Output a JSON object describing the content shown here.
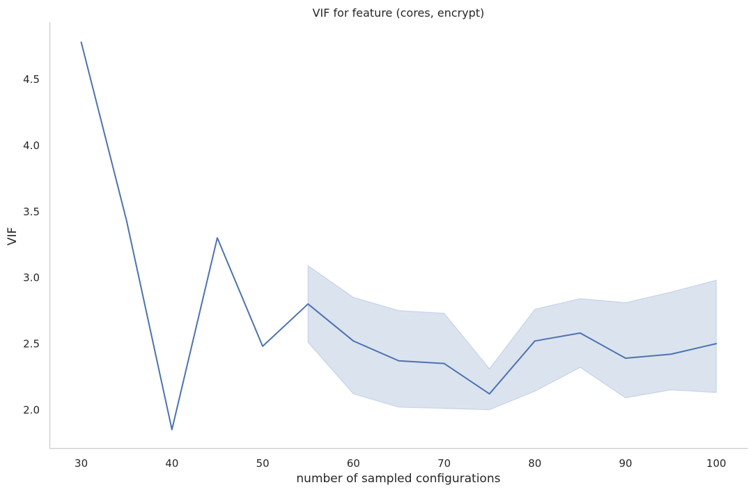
{
  "chart_data": {
    "type": "line",
    "title": "VIF for feature (cores, encrypt)",
    "xlabel": "number of sampled configurations",
    "ylabel": "VIF",
    "xlim": [
      26.5,
      103.5
    ],
    "ylim": [
      1.71,
      4.93
    ],
    "x_ticks": [
      30,
      40,
      50,
      60,
      70,
      80,
      90,
      100
    ],
    "y_ticks": [
      2.0,
      2.5,
      3.0,
      3.5,
      4.0,
      4.5
    ],
    "y_tick_labels": [
      "2.0",
      "2.5",
      "3.0",
      "3.5",
      "4.0",
      "4.5"
    ],
    "grid": false,
    "legend": "none",
    "colors": {
      "line": "#4c72b0",
      "band": "#4c72b0",
      "axis": "#cccccc",
      "text": "#262626"
    },
    "series": [
      {
        "x": [
          30,
          35,
          40,
          45,
          50,
          55,
          60,
          65,
          70,
          75,
          80,
          85,
          90,
          95,
          100
        ],
        "values": [
          4.78,
          3.43,
          1.85,
          3.3,
          2.48,
          2.8,
          2.52,
          2.37,
          2.35,
          2.12,
          2.52,
          2.58,
          2.39,
          2.42,
          2.5
        ],
        "ci_x": [
          55,
          60,
          65,
          70,
          75,
          80,
          85,
          90,
          95,
          100
        ],
        "ci_low": [
          2.51,
          2.12,
          2.02,
          2.01,
          2.0,
          2.14,
          2.32,
          2.09,
          2.15,
          2.13
        ],
        "ci_high": [
          3.09,
          2.85,
          2.75,
          2.73,
          2.31,
          2.76,
          2.84,
          2.81,
          2.89,
          2.98
        ]
      }
    ]
  }
}
